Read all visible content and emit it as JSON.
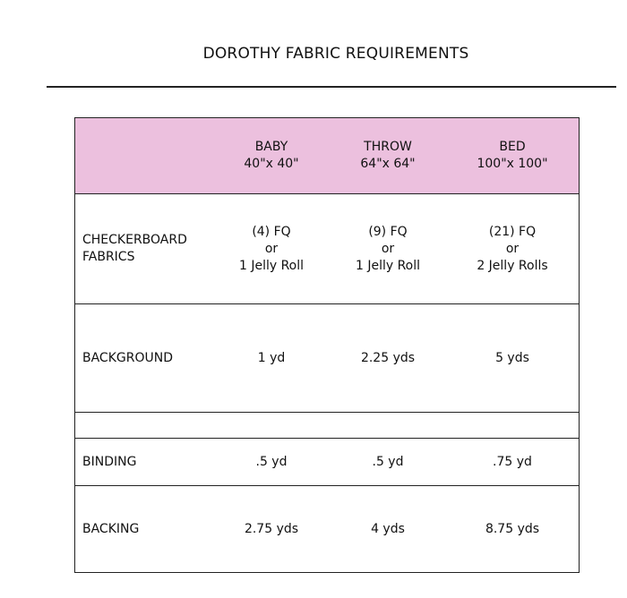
{
  "title": "DOROTHY FABRIC REQUIREMENTS",
  "header": [
    {
      "name": "BABY",
      "size": "40\"x 40\""
    },
    {
      "name": "THROW",
      "size": "64\"x 64\""
    },
    {
      "name": "BED",
      "size": "100\"x 100\""
    }
  ],
  "rows": [
    {
      "label_1": "CHECKERBOARD",
      "label_2": "FABRICS",
      "values": [
        [
          "(4) FQ",
          "or",
          "1 Jelly Roll"
        ],
        [
          "(9) FQ",
          "or",
          "1 Jelly Roll"
        ],
        [
          "(21) FQ",
          "or",
          "2 Jelly Rolls"
        ]
      ]
    },
    {
      "label": "BACKGROUND",
      "values": [
        "1 yd",
        "2.25 yds",
        "5 yds"
      ]
    },
    {
      "label": "BINDING",
      "values": [
        ".5 yd",
        ".5 yd",
        ".75 yd"
      ]
    },
    {
      "label": "BACKING",
      "values": [
        "2.75 yds",
        "4 yds",
        "8.75 yds"
      ]
    }
  ],
  "colors": {
    "header_bg": "#ecc0de"
  }
}
